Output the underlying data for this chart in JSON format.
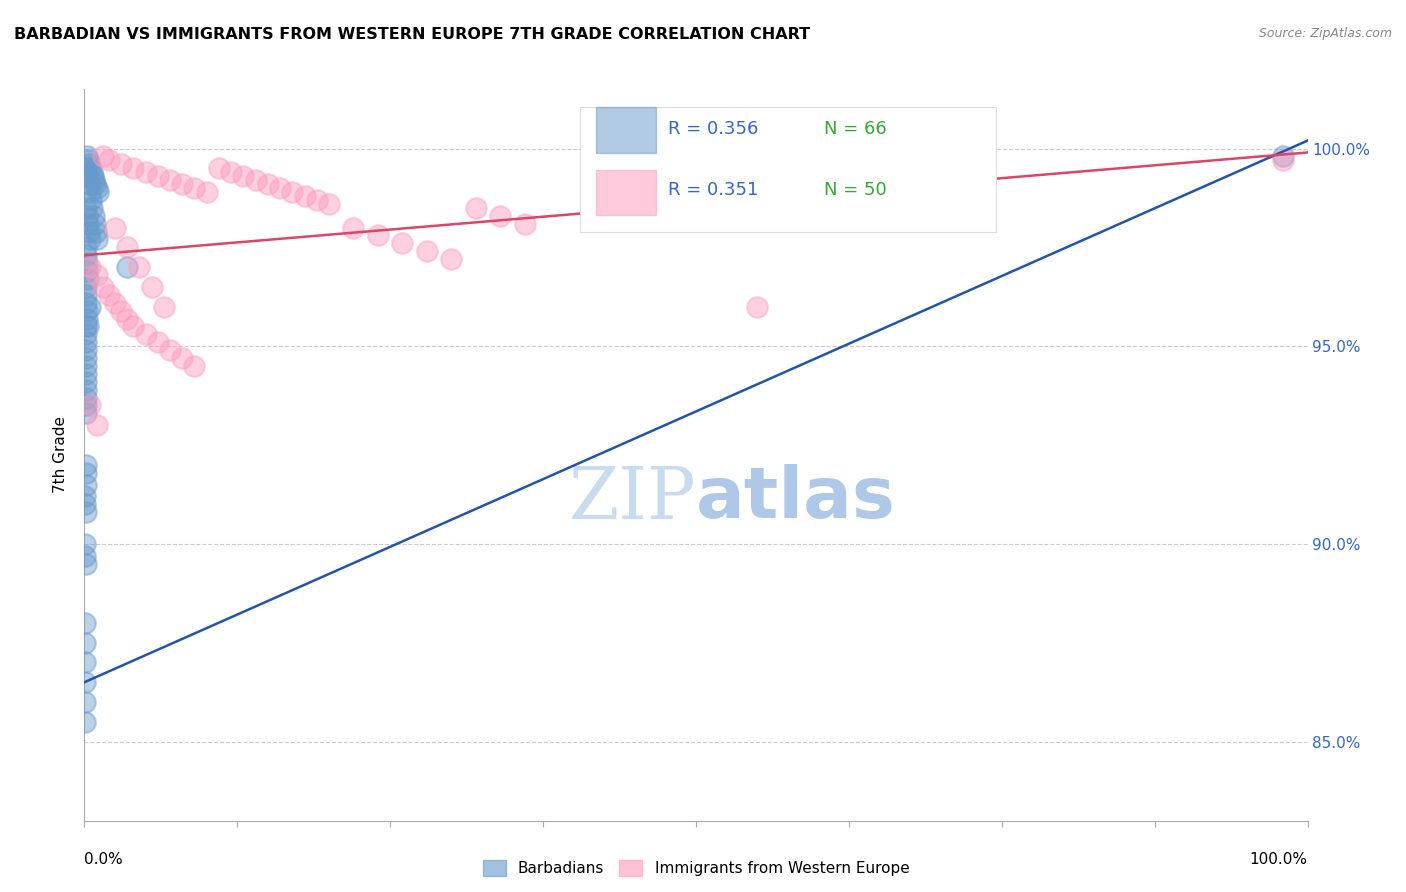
{
  "title": "BARBADIAN VS IMMIGRANTS FROM WESTERN EUROPE 7TH GRADE CORRELATION CHART",
  "source": "Source: ZipAtlas.com",
  "ylabel": "7th Grade",
  "watermark_zip": "ZIP",
  "watermark_atlas": "atlas",
  "blue_label": "Barbadians",
  "pink_label": "Immigrants from Western Europe",
  "blue_R": 0.356,
  "blue_N": 66,
  "pink_R": 0.351,
  "pink_N": 50,
  "xlim": [
    0.0,
    100.0
  ],
  "ylim": [
    83.0,
    101.5
  ],
  "yticks": [
    85.0,
    90.0,
    95.0,
    100.0
  ],
  "blue_color": "#6699CC",
  "pink_color": "#FF99BB",
  "blue_line_color": "#2255AA",
  "pink_line_color": "#DD4466",
  "grid_color": "#CCCCCC",
  "blue_scatter": [
    [
      0.2,
      99.8
    ],
    [
      0.3,
      99.7
    ],
    [
      0.4,
      99.6
    ],
    [
      0.5,
      99.5
    ],
    [
      0.6,
      99.4
    ],
    [
      0.7,
      99.3
    ],
    [
      0.8,
      99.2
    ],
    [
      0.9,
      99.1
    ],
    [
      1.0,
      99.0
    ],
    [
      1.1,
      98.9
    ],
    [
      0.15,
      99.5
    ],
    [
      0.25,
      99.3
    ],
    [
      0.35,
      99.1
    ],
    [
      0.45,
      98.9
    ],
    [
      0.55,
      98.7
    ],
    [
      0.65,
      98.5
    ],
    [
      0.75,
      98.3
    ],
    [
      0.85,
      98.1
    ],
    [
      0.95,
      97.9
    ],
    [
      1.05,
      97.7
    ],
    [
      0.1,
      98.5
    ],
    [
      0.2,
      98.3
    ],
    [
      0.3,
      98.1
    ],
    [
      0.4,
      97.9
    ],
    [
      0.5,
      97.7
    ],
    [
      0.1,
      97.5
    ],
    [
      0.15,
      97.3
    ],
    [
      0.2,
      97.1
    ],
    [
      0.25,
      96.9
    ],
    [
      0.3,
      96.7
    ],
    [
      0.1,
      96.5
    ],
    [
      0.12,
      96.3
    ],
    [
      0.15,
      96.1
    ],
    [
      0.18,
      95.9
    ],
    [
      0.2,
      95.7
    ],
    [
      0.1,
      95.5
    ],
    [
      0.1,
      95.3
    ],
    [
      0.12,
      95.1
    ],
    [
      0.1,
      94.9
    ],
    [
      0.1,
      94.7
    ],
    [
      0.1,
      94.5
    ],
    [
      0.1,
      94.3
    ],
    [
      0.1,
      94.1
    ],
    [
      0.1,
      93.9
    ],
    [
      0.1,
      93.7
    ],
    [
      0.1,
      93.5
    ],
    [
      0.1,
      93.3
    ],
    [
      0.1,
      92.0
    ],
    [
      0.12,
      91.8
    ],
    [
      0.1,
      91.5
    ],
    [
      0.05,
      91.2
    ],
    [
      0.08,
      91.0
    ],
    [
      0.1,
      90.8
    ],
    [
      0.05,
      90.0
    ],
    [
      0.07,
      89.7
    ],
    [
      0.1,
      89.5
    ],
    [
      3.5,
      97.0
    ],
    [
      0.08,
      88.0
    ],
    [
      0.06,
      87.5
    ],
    [
      0.05,
      87.0
    ],
    [
      0.05,
      86.5
    ],
    [
      0.04,
      86.0
    ],
    [
      0.05,
      85.5
    ],
    [
      98.0,
      99.8
    ],
    [
      0.5,
      96.0
    ],
    [
      0.3,
      95.5
    ]
  ],
  "pink_scatter": [
    [
      1.5,
      99.8
    ],
    [
      2.0,
      99.7
    ],
    [
      3.0,
      99.6
    ],
    [
      4.0,
      99.5
    ],
    [
      5.0,
      99.4
    ],
    [
      6.0,
      99.3
    ],
    [
      7.0,
      99.2
    ],
    [
      8.0,
      99.1
    ],
    [
      9.0,
      99.0
    ],
    [
      10.0,
      98.9
    ],
    [
      11.0,
      99.5
    ],
    [
      12.0,
      99.4
    ],
    [
      13.0,
      99.3
    ],
    [
      14.0,
      99.2
    ],
    [
      15.0,
      99.1
    ],
    [
      16.0,
      99.0
    ],
    [
      17.0,
      98.9
    ],
    [
      18.0,
      98.8
    ],
    [
      19.0,
      98.7
    ],
    [
      20.0,
      98.6
    ],
    [
      2.5,
      98.0
    ],
    [
      3.5,
      97.5
    ],
    [
      4.5,
      97.0
    ],
    [
      5.5,
      96.5
    ],
    [
      6.5,
      96.0
    ],
    [
      22.0,
      98.0
    ],
    [
      24.0,
      97.8
    ],
    [
      26.0,
      97.6
    ],
    [
      28.0,
      97.4
    ],
    [
      30.0,
      97.2
    ],
    [
      32.0,
      98.5
    ],
    [
      34.0,
      98.3
    ],
    [
      36.0,
      98.1
    ],
    [
      0.5,
      97.0
    ],
    [
      1.0,
      96.8
    ],
    [
      1.5,
      96.5
    ],
    [
      2.0,
      96.3
    ],
    [
      2.5,
      96.1
    ],
    [
      3.0,
      95.9
    ],
    [
      3.5,
      95.7
    ],
    [
      4.0,
      95.5
    ],
    [
      5.0,
      95.3
    ],
    [
      6.0,
      95.1
    ],
    [
      7.0,
      94.9
    ],
    [
      8.0,
      94.7
    ],
    [
      9.0,
      94.5
    ],
    [
      55.0,
      96.0
    ],
    [
      98.0,
      99.7
    ],
    [
      0.5,
      93.5
    ],
    [
      1.0,
      93.0
    ]
  ],
  "blue_trendline": [
    [
      0.0,
      86.5
    ],
    [
      100.0,
      100.2
    ]
  ],
  "pink_trendline": [
    [
      0.0,
      97.3
    ],
    [
      100.0,
      99.9
    ]
  ]
}
